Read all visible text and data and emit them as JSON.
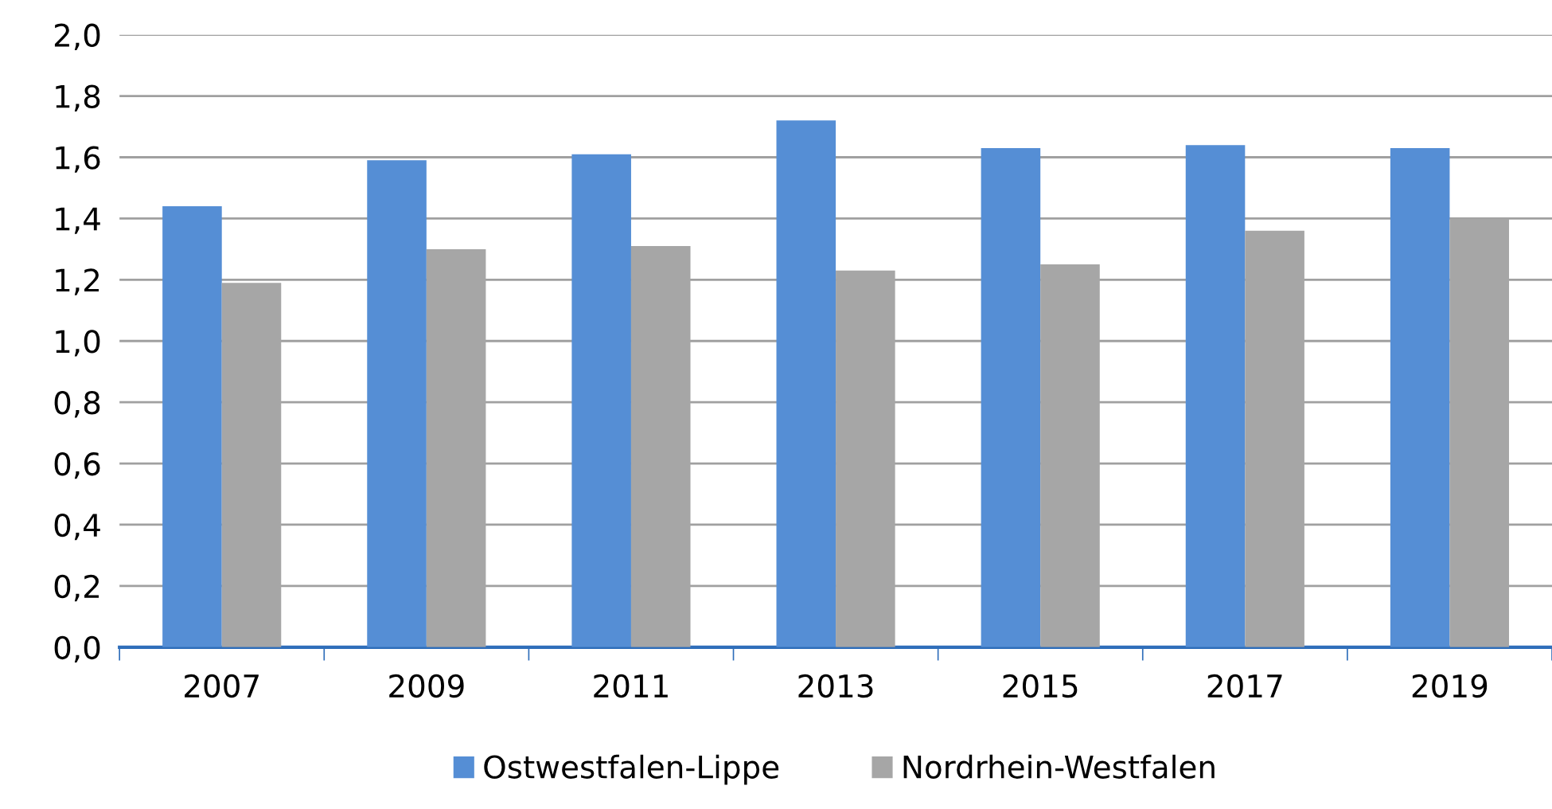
{
  "chart_data": {
    "type": "bar",
    "categories": [
      "2007",
      "2009",
      "2011",
      "2013",
      "2015",
      "2017",
      "2019"
    ],
    "series": [
      {
        "name": "Ostwestfalen-Lippe",
        "color": "#558ed5",
        "values": [
          1.44,
          1.59,
          1.61,
          1.72,
          1.63,
          1.64,
          1.63
        ]
      },
      {
        "name": "Nordrhein-Westfalen",
        "color": "#a6a6a6",
        "values": [
          1.19,
          1.3,
          1.31,
          1.23,
          1.25,
          1.36,
          1.4
        ]
      }
    ],
    "ylim": [
      0,
      2
    ],
    "yticks": [
      {
        "value": 0,
        "label": "0,0"
      },
      {
        "value": 0.2,
        "label": "0,2"
      },
      {
        "value": 0.4,
        "label": "0,4"
      },
      {
        "value": 0.6,
        "label": "0,6"
      },
      {
        "value": 0.8,
        "label": "0,8"
      },
      {
        "value": 1.0,
        "label": "1,0"
      },
      {
        "value": 1.2,
        "label": "1,2"
      },
      {
        "value": 1.4,
        "label": "1,4"
      },
      {
        "value": 1.6,
        "label": "1,6"
      },
      {
        "value": 1.8,
        "label": "1,8"
      },
      {
        "value": 2.0,
        "label": "2,0"
      }
    ],
    "grid": "y",
    "legend": "bottom"
  }
}
